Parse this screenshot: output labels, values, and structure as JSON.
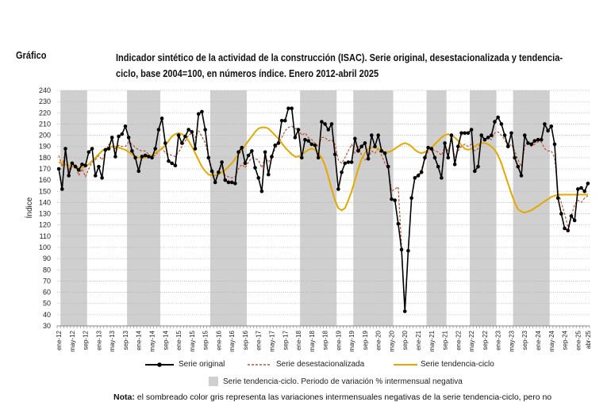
{
  "header": {
    "figure_label": "Gráfico",
    "title": "Indicador sintético de la actividad de la construcción (ISAC). Serie original, desestacionalizada y tendencia-ciclo, base 2004=100, en números índice. Enero 2012-abril 2025"
  },
  "legend": {
    "original": "Serie original",
    "seasonal": "Serie desestacionalizada",
    "trend": "Serie tendencia-ciclo",
    "band": "Serie tendencia-ciclo. Periodo de variación % intermensual negativa"
  },
  "note": {
    "label": "Nota:",
    "text": " el sombreado color gris representa las variaciones intermensuales negativas de la serie tendencia-ciclo, pero no"
  },
  "colors": {
    "original": "#000000",
    "seasonal": "#c0502e",
    "trend": "#e5a800",
    "band": "#d0cfd0",
    "grid": "#b0b0b0"
  },
  "chart_data": {
    "type": "line",
    "title": "Indicador sintético de la actividad de la construcción (ISAC). Serie original, desestacionalizada y tendencia-ciclo, base 2004=100, en números índice. Enero 2012-abril 2025",
    "xlabel": "",
    "ylabel": "Índice",
    "ylim": [
      30,
      240
    ],
    "yticks": [
      30,
      40,
      50,
      60,
      70,
      80,
      90,
      100,
      110,
      120,
      130,
      140,
      150,
      160,
      170,
      180,
      190,
      200,
      210,
      220,
      230,
      240
    ],
    "grid": true,
    "legend_position": "bottom",
    "start": "2012-01",
    "end": "2025-04",
    "n_months": 160,
    "xtick_labels": [
      "ene-12",
      "may-12",
      "sep-12",
      "ene-13",
      "may-13",
      "sep-13",
      "ene-14",
      "may-14",
      "sep-14",
      "ene-15",
      "may-15",
      "sep-15",
      "ene-16",
      "may-16",
      "sep-16",
      "ene-17",
      "may-17",
      "sep-17",
      "ene-18",
      "may-18",
      "sep-18",
      "ene-19",
      "may-19",
      "sep-19",
      "ene-20",
      "may-20",
      "sep-20",
      "ene-21",
      "may-21",
      "sep-21",
      "ene-22",
      "may-22",
      "sep-22",
      "ene-23",
      "may-23",
      "sep-23",
      "ene-24",
      "may-24",
      "sep-24",
      "ene-25",
      "abr-25"
    ],
    "negative_trend_periods": [
      {
        "start": "feb-12",
        "end": "sep-12"
      },
      {
        "start": "oct-13",
        "end": "jul-14"
      },
      {
        "start": "nov-15",
        "end": "sep-16"
      },
      {
        "start": "feb-18",
        "end": "dic-18"
      },
      {
        "start": "jun-19",
        "end": "may-20"
      },
      {
        "start": "abr-21",
        "end": "sep-21"
      },
      {
        "start": "may-22",
        "end": "dic-22"
      },
      {
        "start": "jun-23",
        "end": "abr-24"
      }
    ],
    "series": [
      {
        "name": "Serie original",
        "values": [
          170,
          152,
          188,
          164,
          175,
          172,
          169,
          174,
          173,
          185,
          188,
          164,
          172,
          162,
          187,
          188,
          198,
          181,
          199,
          201,
          208,
          198,
          186,
          180,
          168,
          181,
          182,
          181,
          180,
          188,
          205,
          215,
          193,
          177,
          175,
          173,
          200,
          193,
          199,
          205,
          203,
          188,
          219,
          221,
          205,
          180,
          168,
          158,
          167,
          176,
          160,
          158,
          158,
          157,
          185,
          189,
          175,
          182,
          186,
          171,
          162,
          150,
          185,
          165,
          181,
          191,
          193,
          213,
          213,
          224,
          224,
          198,
          205,
          180,
          196,
          195,
          192,
          191,
          180,
          212,
          210,
          205,
          210,
          183,
          152,
          167,
          175,
          176,
          176,
          197,
          186,
          190,
          193,
          179,
          200,
          190,
          200,
          186,
          184,
          172,
          143,
          142,
          121,
          98,
          43,
          97,
          144,
          162,
          164,
          167,
          180,
          189,
          188,
          180,
          172,
          162,
          193,
          180,
          200,
          174,
          190,
          202,
          202,
          202,
          205,
          168,
          172,
          200,
          196,
          198,
          200,
          212,
          216,
          210,
          200,
          190,
          202,
          180,
          172,
          164,
          200,
          193,
          192,
          195,
          196,
          196,
          210,
          204,
          208,
          192,
          144,
          130,
          117,
          115,
          128,
          124,
          152,
          153,
          150,
          157
        ]
      },
      {
        "name": "Serie desestacionalizada",
        "values": [
          182,
          172,
          185,
          168,
          176,
          174,
          164,
          170,
          163,
          170,
          176,
          178,
          182,
          178,
          185,
          192,
          190,
          188,
          191,
          190,
          190,
          194,
          192,
          189,
          187,
          186,
          186,
          183,
          181,
          182,
          186,
          189,
          184,
          183,
          182,
          181,
          185,
          190,
          195,
          200,
          202,
          198,
          204,
          199,
          193,
          182,
          170,
          164,
          168,
          172,
          164,
          163,
          162,
          163,
          170,
          174,
          171,
          176,
          180,
          179,
          178,
          171,
          180,
          176,
          181,
          188,
          192,
          198,
          204,
          207,
          208,
          206,
          206,
          200,
          202,
          198,
          196,
          193,
          190,
          198,
          198,
          195,
          196,
          192,
          178,
          175,
          180,
          186,
          192,
          184,
          190,
          182,
          178,
          180,
          186,
          184,
          188,
          182,
          175,
          170,
          150,
          152,
          154,
          100,
          45,
          97,
          144,
          162,
          165,
          170,
          178,
          186,
          188,
          186,
          185,
          182,
          190,
          186,
          196,
          180,
          186,
          190,
          192,
          190,
          192,
          186,
          188,
          195,
          197,
          198,
          196,
          202,
          203,
          200,
          196,
          190,
          192,
          186,
          178,
          172,
          190,
          195,
          190,
          192,
          194,
          194,
          188,
          186,
          186,
          180,
          150,
          140,
          130,
          118,
          128,
          138,
          142,
          140,
          144,
          146
        ]
      },
      {
        "name": "Serie tendencia-ciclo",
        "values": [
          176,
          175,
          174,
          173,
          172,
          172,
          171,
          171,
          172,
          174,
          177,
          180,
          183,
          186,
          188,
          189,
          190,
          190,
          189,
          188,
          187,
          185,
          183,
          181,
          180,
          180,
          180,
          181,
          182,
          184,
          186,
          188,
          191,
          195,
          199,
          201,
          202,
          201,
          199,
          195,
          190,
          184,
          178,
          172,
          168,
          165,
          164,
          164,
          165,
          167,
          169,
          172,
          175,
          179,
          183,
          187,
          191,
          195,
          199,
          203,
          206,
          207,
          207,
          206,
          203,
          200,
          197,
          193,
          189,
          186,
          183,
          181,
          181,
          183,
          185,
          187,
          188,
          187,
          184,
          180,
          173,
          163,
          152,
          142,
          135,
          133,
          135,
          142,
          150,
          160,
          170,
          179,
          184,
          188,
          189,
          189,
          188,
          186,
          185,
          185,
          186,
          188,
          190,
          192,
          193,
          192,
          190,
          187,
          185,
          184,
          185,
          187,
          189,
          192,
          195,
          198,
          200,
          201,
          200,
          198,
          195,
          191,
          188,
          187,
          188,
          190,
          192,
          193,
          193,
          192,
          190,
          187,
          182,
          175,
          166,
          157,
          148,
          140,
          134,
          132,
          131,
          132,
          133,
          135,
          137,
          139,
          141,
          143,
          145,
          146,
          147,
          147,
          147,
          147,
          147,
          147,
          147,
          147,
          147,
          147
        ]
      }
    ]
  }
}
